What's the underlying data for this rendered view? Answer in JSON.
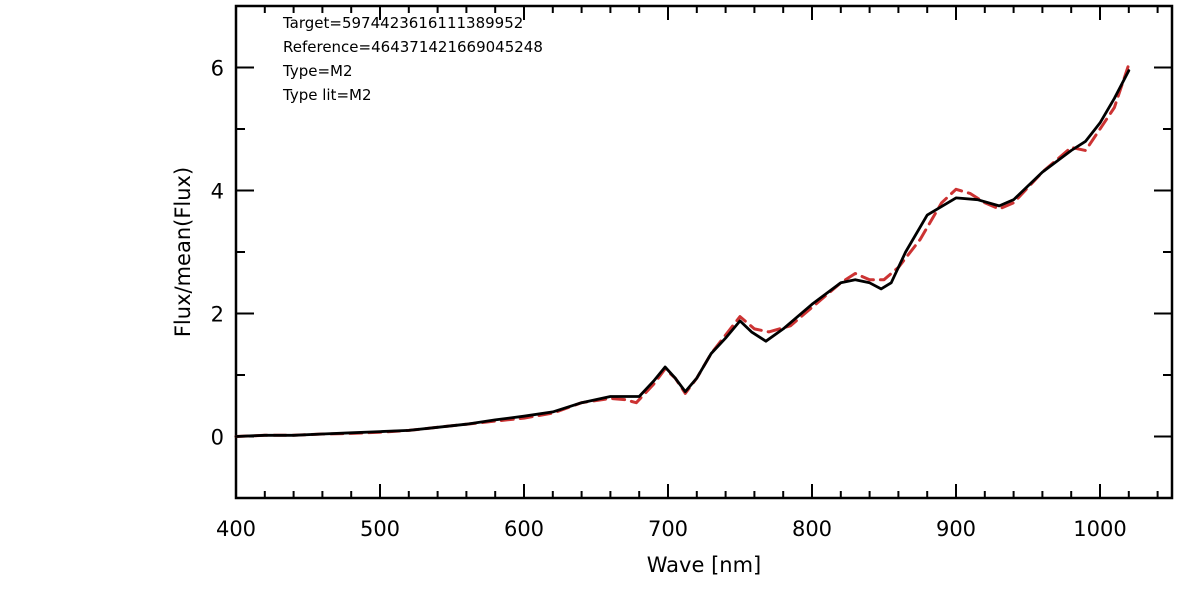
{
  "chart_data": {
    "type": "line",
    "xlabel": "Wave [nm]",
    "ylabel": "Flux/mean(Flux)",
    "xlim": [
      400,
      1050
    ],
    "ylim": [
      -1,
      7
    ],
    "xticks": [
      400,
      500,
      600,
      700,
      800,
      900,
      1000
    ],
    "yticks": [
      0,
      2,
      4,
      6
    ],
    "grid": false,
    "annotations": [
      "Target=5974423616111389952",
      "Reference=464371421669045248",
      "Type=M2",
      "Type lit=M2"
    ],
    "series": [
      {
        "color": "#000000",
        "style": "solid",
        "x": [
          400,
          420,
          440,
          460,
          480,
          500,
          520,
          540,
          560,
          580,
          600,
          620,
          640,
          660,
          670,
          680,
          690,
          698,
          705,
          712,
          720,
          730,
          740,
          750,
          758,
          768,
          780,
          800,
          820,
          830,
          840,
          848,
          855,
          865,
          880,
          900,
          915,
          930,
          940,
          960,
          980,
          990,
          1000,
          1010,
          1020
        ],
        "y": [
          0.0,
          0.02,
          0.02,
          0.04,
          0.06,
          0.08,
          0.1,
          0.15,
          0.2,
          0.27,
          0.33,
          0.4,
          0.55,
          0.65,
          0.65,
          0.65,
          0.9,
          1.13,
          0.95,
          0.73,
          0.95,
          1.35,
          1.6,
          1.88,
          1.7,
          1.55,
          1.75,
          2.15,
          2.5,
          2.55,
          2.5,
          2.4,
          2.5,
          3.0,
          3.6,
          3.88,
          3.85,
          3.75,
          3.85,
          4.3,
          4.65,
          4.8,
          5.1,
          5.5,
          5.95
        ]
      },
      {
        "color": "#cc3333",
        "style": "dashed",
        "x": [
          400,
          420,
          440,
          460,
          480,
          500,
          520,
          540,
          560,
          580,
          600,
          620,
          640,
          660,
          670,
          678,
          690,
          698,
          705,
          712,
          720,
          730,
          740,
          750,
          760,
          770,
          785,
          800,
          820,
          830,
          840,
          850,
          860,
          875,
          890,
          900,
          910,
          920,
          930,
          940,
          960,
          980,
          990,
          1000,
          1010,
          1020
        ],
        "y": [
          0.0,
          0.02,
          0.02,
          0.04,
          0.05,
          0.07,
          0.1,
          0.15,
          0.2,
          0.25,
          0.3,
          0.38,
          0.55,
          0.62,
          0.6,
          0.55,
          0.85,
          1.1,
          0.95,
          0.7,
          0.95,
          1.35,
          1.65,
          1.95,
          1.75,
          1.7,
          1.8,
          2.1,
          2.5,
          2.65,
          2.55,
          2.55,
          2.75,
          3.2,
          3.8,
          4.02,
          3.95,
          3.8,
          3.7,
          3.8,
          4.3,
          4.7,
          4.65,
          5.0,
          5.35,
          6.05
        ]
      }
    ]
  }
}
